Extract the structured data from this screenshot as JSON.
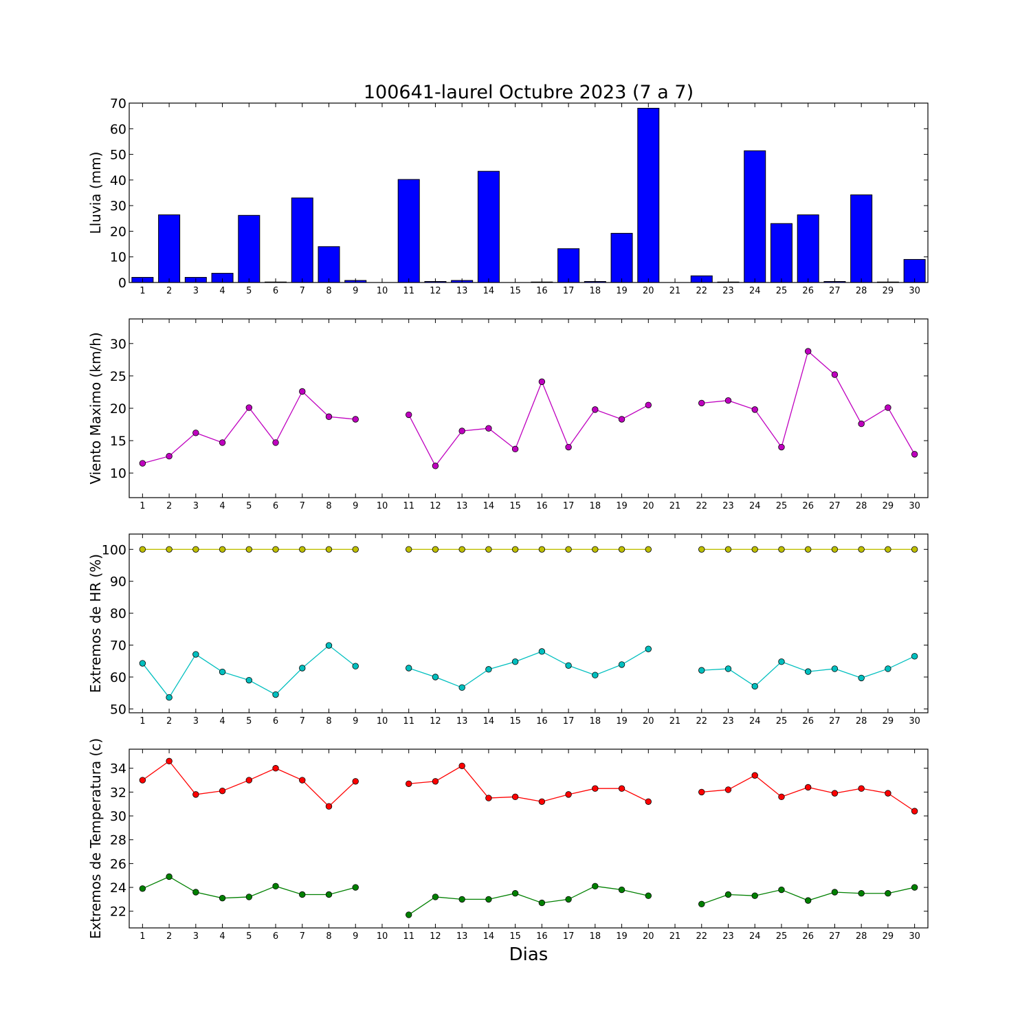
{
  "title": "100641-laurel Octubre 2023  (7 a 7)",
  "xlabel": "Dias",
  "colors": {
    "bar": "#0000ff",
    "wind": "#bf00bf",
    "hr_max": "#bfbf00",
    "hr_min": "#00bfbf",
    "temp_max": "#ff0000",
    "temp_min": "#008000"
  },
  "chart_data": [
    {
      "type": "bar",
      "ylabel": "Lluvia (mm)",
      "x": [
        1,
        2,
        3,
        4,
        5,
        6,
        7,
        8,
        9,
        10,
        11,
        12,
        13,
        14,
        15,
        16,
        17,
        18,
        19,
        20,
        21,
        22,
        23,
        24,
        25,
        26,
        27,
        28,
        29,
        30
      ],
      "values": [
        2.0,
        26.4,
        2.0,
        3.6,
        26.2,
        0.2,
        33.0,
        14.0,
        0.8,
        null,
        40.2,
        0.4,
        0.8,
        43.4,
        0.0,
        0.2,
        13.2,
        0.4,
        19.2,
        68.0,
        null,
        2.6,
        0.2,
        51.4,
        23.0,
        26.4,
        0.4,
        34.2,
        0.2,
        9.0
      ],
      "xlim": [
        0.5,
        30.5
      ],
      "ylim": [
        0,
        70
      ],
      "yticks": [
        0,
        10,
        20,
        30,
        40,
        50,
        60,
        70
      ],
      "grid": false
    },
    {
      "type": "line",
      "ylabel": "Viento Maximo (km/h)",
      "x": [
        1,
        2,
        3,
        4,
        5,
        6,
        7,
        8,
        9,
        10,
        11,
        12,
        13,
        14,
        15,
        16,
        17,
        18,
        19,
        20,
        21,
        22,
        23,
        24,
        25,
        26,
        27,
        28,
        29,
        30
      ],
      "series": [
        {
          "color": "#bf00bf",
          "values": [
            11.5,
            12.6,
            16.2,
            14.7,
            20.1,
            14.7,
            22.6,
            18.7,
            18.3,
            null,
            19.0,
            11.1,
            16.5,
            16.9,
            13.7,
            24.1,
            14.0,
            19.8,
            18.3,
            20.5,
            null,
            20.8,
            21.2,
            19.8,
            14.0,
            28.8,
            25.2,
            17.6,
            20.1,
            12.9
          ]
        }
      ],
      "xlim": [
        0.5,
        30.5
      ],
      "ylim": [
        6.2,
        33.8
      ],
      "yticks": [
        10,
        15,
        20,
        25,
        30
      ],
      "grid": false
    },
    {
      "type": "line",
      "ylabel": "Extremos de HR (%)",
      "x": [
        1,
        2,
        3,
        4,
        5,
        6,
        7,
        8,
        9,
        10,
        11,
        12,
        13,
        14,
        15,
        16,
        17,
        18,
        19,
        20,
        21,
        22,
        23,
        24,
        25,
        26,
        27,
        28,
        29,
        30
      ],
      "series": [
        {
          "color": "#bfbf00",
          "values": [
            100,
            100,
            100,
            100,
            100,
            100,
            100,
            100,
            100,
            null,
            100,
            100,
            100,
            100,
            100,
            100,
            100,
            100,
            100,
            100,
            null,
            100,
            100,
            100,
            100,
            100,
            100,
            100,
            100,
            100
          ]
        },
        {
          "color": "#00bfbf",
          "values": [
            64.3,
            53.6,
            67.1,
            61.6,
            59.0,
            54.5,
            62.8,
            69.9,
            63.4,
            null,
            62.8,
            60.0,
            56.7,
            62.4,
            64.8,
            68.0,
            63.6,
            60.6,
            63.9,
            68.8,
            null,
            62.1,
            62.6,
            57.1,
            64.8,
            61.7,
            62.6,
            59.7,
            62.6,
            66.5
          ]
        }
      ],
      "xlim": [
        0.5,
        30.5
      ],
      "ylim": [
        48.8,
        104.8
      ],
      "yticks": [
        50,
        60,
        70,
        80,
        90,
        100
      ],
      "grid": false
    },
    {
      "type": "line",
      "ylabel": "Extremos de Temperatura (c)",
      "x": [
        1,
        2,
        3,
        4,
        5,
        6,
        7,
        8,
        9,
        10,
        11,
        12,
        13,
        14,
        15,
        16,
        17,
        18,
        19,
        20,
        21,
        22,
        23,
        24,
        25,
        26,
        27,
        28,
        29,
        30
      ],
      "series": [
        {
          "color": "#ff0000",
          "values": [
            33.0,
            34.6,
            31.8,
            32.1,
            33.0,
            34.0,
            33.0,
            30.8,
            32.9,
            null,
            32.7,
            32.9,
            34.2,
            31.5,
            31.6,
            31.2,
            31.8,
            32.3,
            32.3,
            31.2,
            null,
            32.0,
            32.2,
            33.4,
            31.6,
            32.4,
            31.9,
            32.3,
            31.9,
            30.4
          ]
        },
        {
          "color": "#008000",
          "values": [
            23.9,
            24.9,
            23.6,
            23.1,
            23.2,
            24.1,
            23.4,
            23.4,
            24.0,
            null,
            21.7,
            23.2,
            23.0,
            23.0,
            23.5,
            22.7,
            23.0,
            24.1,
            23.8,
            23.3,
            null,
            22.6,
            23.4,
            23.3,
            23.8,
            22.9,
            23.6,
            23.5,
            23.5,
            24.0
          ]
        }
      ],
      "xlim": [
        0.5,
        30.5
      ],
      "ylim": [
        20.6,
        35.6
      ],
      "yticks": [
        22,
        24,
        26,
        28,
        30,
        32,
        34
      ],
      "grid": false
    }
  ]
}
